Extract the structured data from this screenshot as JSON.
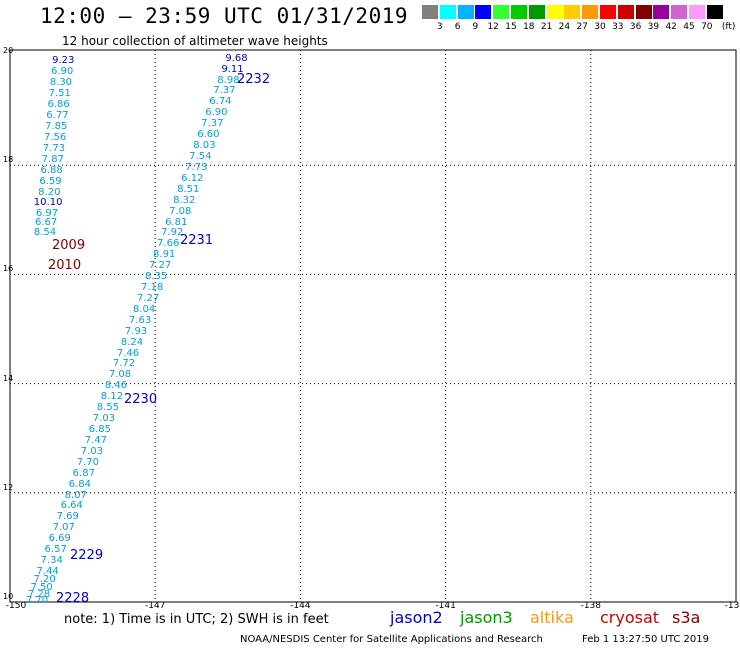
{
  "header": {
    "title": "12:00 – 23:59 UTC 01/31/2019",
    "subtitle": "12 hour collection of altimeter wave heights"
  },
  "legend": {
    "colors": [
      "#808080",
      "#00ffff",
      "#00b4ff",
      "#0000ff",
      "#33ff33",
      "#00cc00",
      "#009900",
      "#ffff00",
      "#ffcc00",
      "#ff9900",
      "#ff0000",
      "#cc0000",
      "#800000",
      "#990099",
      "#cc66cc",
      "#ff99ff",
      "#000000"
    ],
    "labels": [
      "3",
      "6",
      "9",
      "12",
      "15",
      "18",
      "21",
      "24",
      "27",
      "30",
      "33",
      "36",
      "39",
      "42",
      "45",
      "70"
    ],
    "unit": "(ft)"
  },
  "axes": {
    "y_labels": [
      "20",
      "18",
      "16",
      "14",
      "12",
      "10"
    ],
    "x_labels": [
      "-150",
      "-147",
      "-144",
      "-141",
      "-138",
      "-13"
    ]
  },
  "chart_data": {
    "type": "scatter",
    "track_left": {
      "values": [
        "9.23",
        "6.90",
        "8.30",
        "7.51",
        "6.86",
        "6.77",
        "7.85",
        "7.56",
        "7.73",
        "7.87",
        "6.88",
        "6.59",
        "8.20",
        "10.10",
        "6.97",
        "6.67",
        "8.54"
      ],
      "lats": [
        19.9,
        19.7,
        19.5,
        19.3,
        19.1,
        18.9,
        18.7,
        18.5,
        18.3,
        18.1,
        17.9,
        17.7,
        17.5,
        17.3,
        17.1,
        16.95,
        16.75
      ]
    },
    "track_right": {
      "values": [
        "9.68",
        "9.11",
        "8.98",
        "7.37",
        "6.74",
        "6.90",
        "7.37",
        "6.60",
        "8.03",
        "7.54",
        "7.73",
        "6.12",
        "8.51",
        "8.32",
        "7.08",
        "6.81",
        "7.92",
        "7.66",
        "8.91",
        "7.27",
        "8.35",
        "7.18",
        "7.27",
        "8.04",
        "7.63",
        "7.93",
        "8.24",
        "7.46",
        "7.72",
        "7.08",
        "8.46",
        "8.12",
        "8.55",
        "7.03",
        "6.85",
        "7.47",
        "7.03",
        "7.70",
        "6.87",
        "6.84",
        "8.07",
        "6.64",
        "7.69",
        "7.07",
        "6.69",
        "6.57",
        "7.34",
        "7.44",
        "7.20",
        "7.50",
        "7.28",
        "7.70"
      ],
      "lats": [
        19.95,
        19.75,
        19.55,
        19.35,
        19.15,
        18.95,
        18.75,
        18.55,
        18.35,
        18.15,
        17.95,
        17.75,
        17.55,
        17.35,
        17.15,
        16.95,
        16.75,
        16.55,
        16.35,
        16.15,
        15.95,
        15.75,
        15.55,
        15.35,
        15.15,
        14.95,
        14.75,
        14.55,
        14.35,
        14.15,
        13.95,
        13.75,
        13.55,
        13.35,
        13.15,
        12.95,
        12.75,
        12.55,
        12.35,
        12.15,
        11.95,
        11.75,
        11.55,
        11.35,
        11.15,
        10.95,
        10.75,
        10.55,
        10.4,
        10.25,
        10.12,
        10.02
      ]
    },
    "passes": [
      {
        "label": "2232",
        "color": "#0000cc"
      },
      {
        "label": "2009",
        "color": "#800000"
      },
      {
        "label": "2231",
        "color": "#0000cc"
      },
      {
        "label": "2010",
        "color": "#800000"
      },
      {
        "label": "2230",
        "color": "#0000cc"
      },
      {
        "label": "2229",
        "color": "#0000cc"
      },
      {
        "label": "2228",
        "color": "#0000cc"
      }
    ],
    "value_color": "#00a0e0",
    "high_value_color": "#0000cc"
  },
  "footer": {
    "note": "note:  1) Time is in UTC;  2) SWH is in feet",
    "satellites": [
      {
        "name": "jason2",
        "color": "#0000cc"
      },
      {
        "name": "jason3",
        "color": "#009900"
      },
      {
        "name": "altika",
        "color": "#ff9900"
      },
      {
        "name": "cryosat",
        "color": "#cc0000"
      },
      {
        "name": "s3a",
        "color": "#800000"
      }
    ],
    "credit": "NOAA/NESDIS Center for Satellite Applications and Research",
    "timestamp": "Feb  1 13:27:50 UTC 2019"
  }
}
